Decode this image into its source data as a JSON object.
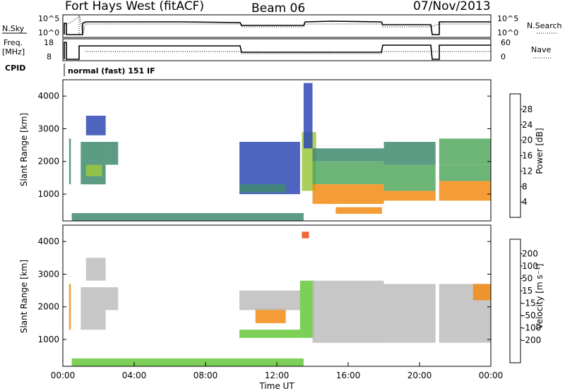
{
  "header": {
    "station": "Fort Hays West (fitACF)",
    "beam": "Beam 06",
    "date": "07/Nov/2013"
  },
  "panels": {
    "nsky": {
      "label": "N.Sky",
      "ticks": [
        "10^5",
        "10^0"
      ],
      "right_ticks": [
        "10^5",
        "10^0"
      ],
      "right_label": "N.Search"
    },
    "freq": {
      "label_top": "Freq.",
      "label_bottom": "[MHz]",
      "ticks": [
        "18",
        "8"
      ],
      "right_ticks": [
        "60",
        "0"
      ],
      "right_label": "Nave"
    },
    "cpid": {
      "label": "CPID",
      "text": "normal (fast) 151 IF"
    }
  },
  "colors": {
    "power": [
      "#1028d8",
      "#2f49b4",
      "#3f8a6e",
      "#54a85e",
      "#9ac83e",
      "#e6c81c",
      "#f28c14",
      "#f04a10",
      "#e80c0c"
    ],
    "velocity": [
      "#e80c0c",
      "#f04a10",
      "#f28c14",
      "#f2b22a",
      "#bdbdbd",
      "#bdbdbd",
      "#66c83a",
      "#3f8a6e",
      "#2f49b4",
      "#1028d8"
    ]
  },
  "chart_data": [
    {
      "type": "heatmap",
      "name": "power",
      "xlabel": "",
      "ylabel": "Slant Range [km]",
      "xlim": [
        0,
        24
      ],
      "ylim": [
        180,
        4500
      ],
      "yticks": [
        "1000",
        "2000",
        "3000",
        "4000"
      ],
      "colorbar": {
        "label": "Power [dB]",
        "ticks": [
          "4",
          "8",
          "12",
          "16",
          "20",
          "24",
          "28"
        ],
        "range": [
          0,
          32
        ]
      },
      "regions": [
        {
          "x": [
            0.35,
            0.45
          ],
          "y": [
            1300,
            2700
          ],
          "v": 10
        },
        {
          "x": [
            1.0,
            2.4
          ],
          "y": [
            1300,
            2600
          ],
          "v": 10
        },
        {
          "x": [
            1.3,
            2.2
          ],
          "y": [
            1550,
            1900
          ],
          "v": 18
        },
        {
          "x": [
            1.3,
            2.4
          ],
          "y": [
            2800,
            3400
          ],
          "v": 4
        },
        {
          "x": [
            2.4,
            3.1
          ],
          "y": [
            1900,
            2600
          ],
          "v": 8
        },
        {
          "x": [
            9.9,
            13.3
          ],
          "y": [
            1000,
            2600
          ],
          "v": 4
        },
        {
          "x": [
            9.9,
            12.5
          ],
          "y": [
            1050,
            1300
          ],
          "v": 8
        },
        {
          "x": [
            13.4,
            14.2
          ],
          "y": [
            1100,
            2900
          ],
          "v": 16
        },
        {
          "x": [
            14.0,
            18.0
          ],
          "y": [
            2000,
            2400
          ],
          "v": 8
        },
        {
          "x": [
            14.0,
            18.0
          ],
          "y": [
            1300,
            2000
          ],
          "v": 12
        },
        {
          "x": [
            14.0,
            18.0
          ],
          "y": [
            700,
            1300
          ],
          "v": 26
        },
        {
          "x": [
            15.3,
            17.9
          ],
          "y": [
            400,
            600
          ],
          "v": 26
        },
        {
          "x": [
            18.0,
            20.9
          ],
          "y": [
            1900,
            2600
          ],
          "v": 10
        },
        {
          "x": [
            18.0,
            20.9
          ],
          "y": [
            1100,
            1900
          ],
          "v": 13
        },
        {
          "x": [
            18.0,
            20.9
          ],
          "y": [
            800,
            1100
          ],
          "v": 24
        },
        {
          "x": [
            21.1,
            24.0
          ],
          "y": [
            1900,
            2700
          ],
          "v": 14
        },
        {
          "x": [
            21.1,
            24.0
          ],
          "y": [
            1400,
            1900
          ],
          "v": 12
        },
        {
          "x": [
            21.1,
            24.0
          ],
          "y": [
            800,
            1400
          ],
          "v": 25
        },
        {
          "x": [
            0.5,
            13.5
          ],
          "y": [
            180,
            420
          ],
          "v": 8
        },
        {
          "x": [
            13.5,
            14.0
          ],
          "y": [
            2400,
            4400
          ],
          "v": 6
        }
      ]
    },
    {
      "type": "heatmap",
      "name": "velocity",
      "xlabel": "Time UT",
      "ylabel": "Slant Range [km]",
      "xlim": [
        0,
        24
      ],
      "ylim": [
        180,
        4500
      ],
      "xticks": [
        "00:00",
        "04:00",
        "08:00",
        "12:00",
        "16:00",
        "20:00",
        "00:00"
      ],
      "yticks": [
        "1000",
        "2000",
        "3000",
        "4000"
      ],
      "colorbar": {
        "label": "Velocity [m s⁻¹]",
        "ticks": [
          "200",
          "100",
          "50",
          "15",
          "-15",
          "-50",
          "-100",
          "-200"
        ]
      },
      "regions": [
        {
          "x": [
            0.35,
            0.45
          ],
          "y": [
            1300,
            2700
          ],
          "v": -60
        },
        {
          "x": [
            1.0,
            2.4
          ],
          "y": [
            1300,
            2600
          ],
          "v": 0
        },
        {
          "x": [
            1.3,
            2.4
          ],
          "y": [
            2800,
            3500
          ],
          "v": 0
        },
        {
          "x": [
            2.4,
            3.1
          ],
          "y": [
            1900,
            2600
          ],
          "v": 0
        },
        {
          "x": [
            9.9,
            13.3
          ],
          "y": [
            1050,
            1300
          ],
          "v": 45
        },
        {
          "x": [
            10.8,
            12.5
          ],
          "y": [
            1500,
            1950
          ],
          "v": -80
        },
        {
          "x": [
            9.9,
            13.3
          ],
          "y": [
            1900,
            2500
          ],
          "v": 0
        },
        {
          "x": [
            13.3,
            14.1
          ],
          "y": [
            1050,
            2800
          ],
          "v": 45
        },
        {
          "x": [
            14.0,
            18.0
          ],
          "y": [
            900,
            2200
          ],
          "v": 0
        },
        {
          "x": [
            14.0,
            18.0
          ],
          "y": [
            2200,
            2800
          ],
          "v": 0
        },
        {
          "x": [
            18.0,
            20.9
          ],
          "y": [
            900,
            2700
          ],
          "v": 0
        },
        {
          "x": [
            21.1,
            24.0
          ],
          "y": [
            900,
            2700
          ],
          "v": 0
        },
        {
          "x": [
            23.0,
            24.0
          ],
          "y": [
            2200,
            2700
          ],
          "v": -60
        },
        {
          "x": [
            0.5,
            13.5
          ],
          "y": [
            180,
            420
          ],
          "v": 40
        },
        {
          "x": [
            13.4,
            13.8
          ],
          "y": [
            4100,
            4300
          ],
          "v": -150
        }
      ]
    }
  ]
}
